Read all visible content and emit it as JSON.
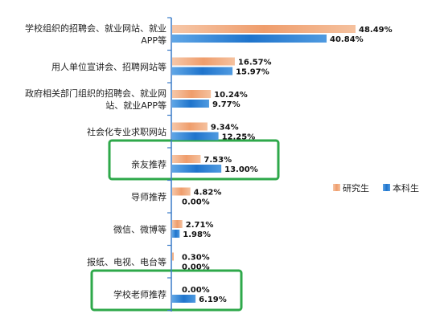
{
  "chart_data": {
    "type": "bar",
    "orientation": "horizontal",
    "categories": [
      [
        "学校组织的招聘会、就业网站、就业",
        "APP等"
      ],
      [
        "用人单位宣讲会、招聘网站等"
      ],
      [
        "政府相关部门组织的招聘会、就业网",
        "站、就业APP等"
      ],
      [
        "社会化专业求职网站"
      ],
      [
        "亲友推荐"
      ],
      [
        "导师推荐"
      ],
      [
        "微信、微博等"
      ],
      [
        "报纸、电视、电台等"
      ],
      [
        "学校老师推荐"
      ]
    ],
    "series": [
      {
        "name": "研究生",
        "values": [
          48.49,
          16.57,
          10.24,
          9.34,
          7.53,
          4.82,
          2.71,
          0.3,
          0.0
        ],
        "labels": [
          "48.49%",
          "16.57%",
          "10.24%",
          "9.34%",
          "7.53%",
          "4.82%",
          "2.71%",
          "0.30%",
          "0.00%"
        ]
      },
      {
        "name": "本科生",
        "values": [
          40.84,
          15.97,
          9.77,
          12.25,
          13.0,
          0.0,
          1.98,
          0.0,
          6.19
        ],
        "labels": [
          "40.84%",
          "15.97%",
          "9.77%",
          "12.25%",
          "13.00%",
          "0.00%",
          "1.98%",
          "0.00%",
          "6.19%"
        ]
      }
    ],
    "highlighted_categories": [
      4,
      8
    ],
    "legend_position": "right",
    "colors": {
      "graduate": "#f0a070",
      "undergraduate": "#2a7fd4",
      "highlight": "#2ea84a",
      "axis": "#3a7bc8"
    }
  }
}
